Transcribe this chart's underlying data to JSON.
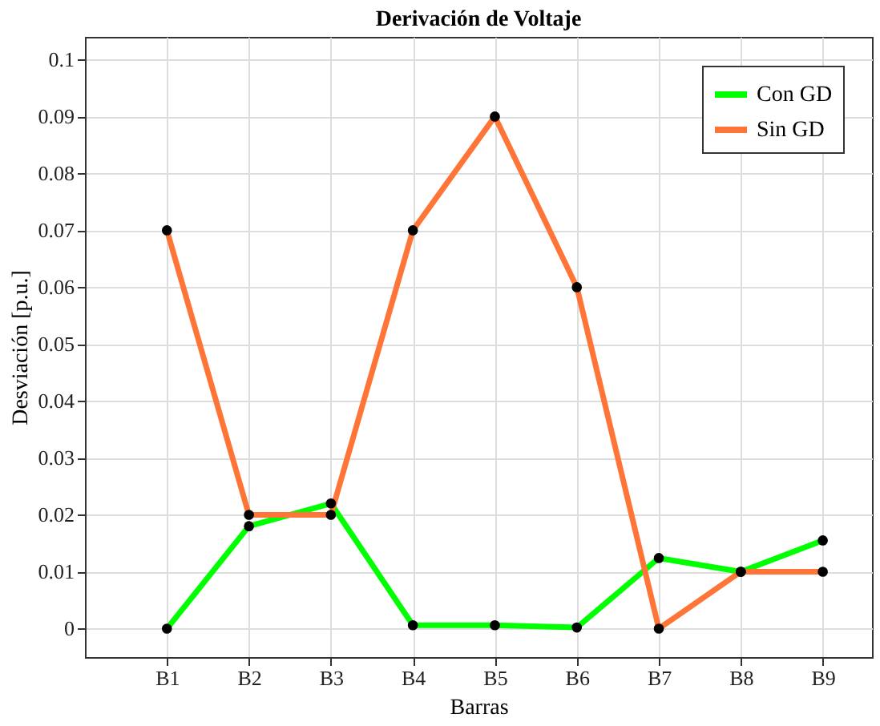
{
  "chart_data": {
    "type": "line",
    "title": "Derivación de Voltaje",
    "xlabel": "Barras",
    "ylabel": "Desviación [p.u.]",
    "categories": [
      "B1",
      "B2",
      "B3",
      "B4",
      "B5",
      "B6",
      "B7",
      "B8",
      "B9"
    ],
    "series": [
      {
        "name": "Con GD",
        "color": "#00ff00",
        "values": [
          0,
          0.018,
          0.022,
          0.0006,
          0.0006,
          0.0002,
          0.0124,
          0.01,
          0.0155
        ]
      },
      {
        "name": "Sin GD",
        "color": "#ff7538",
        "values": [
          0.07,
          0.02,
          0.02,
          0.07,
          0.09,
          0.06,
          0,
          0.01,
          0.01
        ]
      }
    ],
    "ylim": [
      -0.005,
      0.104
    ],
    "yticks": [
      0,
      0.01,
      0.02,
      0.03,
      0.04,
      0.05,
      0.06,
      0.07,
      0.08,
      0.09,
      0.1
    ],
    "grid": true,
    "legend": "top right",
    "marker": "circle",
    "line_style": "solid"
  }
}
